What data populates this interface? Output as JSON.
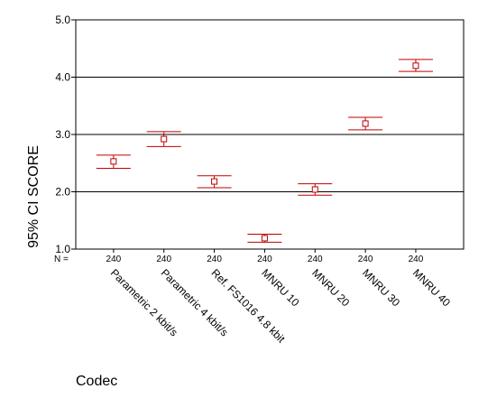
{
  "chart_data": {
    "type": "errorbar",
    "title": "",
    "xlabel": "Codec",
    "ylabel": "95% CI SCORE",
    "ylim": [
      1.0,
      5.0
    ],
    "yticks": [
      "1.0",
      "2.0",
      "3.0",
      "4.0",
      "5.0"
    ],
    "grid": "horizontal",
    "n_label": "N =",
    "categories": [
      "Parametric 2 kbit/s",
      "Parametric 4 kbit/s",
      "Ref. FS1016 4.8 kbit",
      "MNRU 10",
      "MNRU 20",
      "MNRU 30",
      "MNRU 40"
    ],
    "n": [
      "240",
      "240",
      "240",
      "240",
      "240",
      "240",
      "240"
    ],
    "mean": [
      2.53,
      2.92,
      2.18,
      1.19,
      2.04,
      3.19,
      4.2
    ],
    "lower": [
      2.41,
      2.79,
      2.07,
      1.12,
      1.94,
      3.08,
      4.1
    ],
    "upper": [
      2.64,
      3.05,
      2.28,
      1.26,
      2.14,
      3.3,
      4.31
    ],
    "colors": {
      "marker": "#c00000",
      "axis": "#000000",
      "grid": "#000000"
    }
  }
}
